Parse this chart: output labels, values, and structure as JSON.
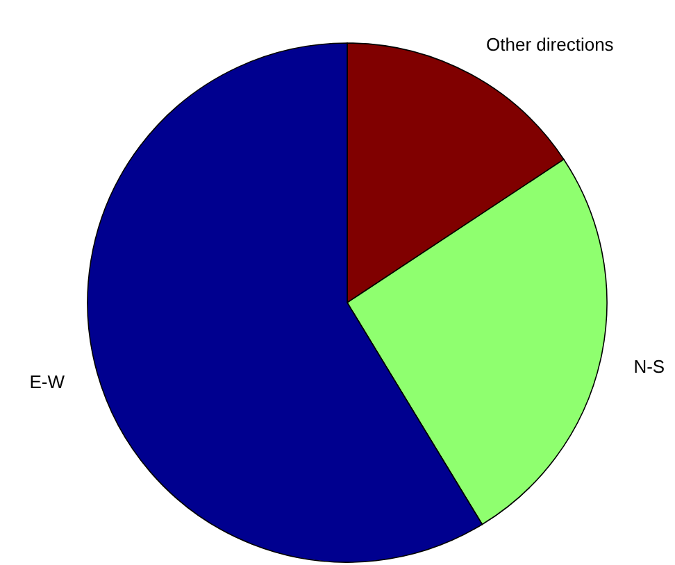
{
  "chart_data": {
    "type": "pie",
    "categories": [
      "Other directions",
      "N-S",
      "E-W"
    ],
    "values": [
      15.7,
      25.6,
      58.7
    ],
    "colors": [
      "#800000",
      "#8fff6f",
      "#00008f"
    ]
  }
}
